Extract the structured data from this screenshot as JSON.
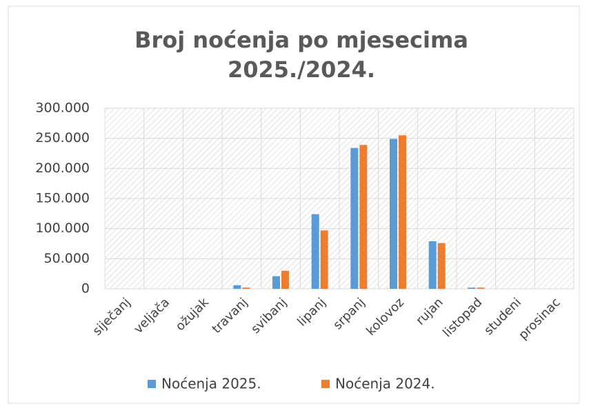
{
  "chart_data": {
    "type": "bar",
    "title": [
      "Broj noćenja po mjesecima",
      "2025./2024."
    ],
    "categories": [
      "siječanj",
      "veljača",
      "ožujak",
      "travanj",
      "svibanj",
      "lipanj",
      "srpanj",
      "kolovoz",
      "rujan",
      "listopad",
      "studeni",
      "prosinac"
    ],
    "series": [
      {
        "name": "Noćenja 2025.",
        "color": "#5b9bd5",
        "values": [
          0,
          0,
          0,
          6000,
          21000,
          124000,
          234000,
          249000,
          79000,
          2000,
          0,
          0
        ]
      },
      {
        "name": "Noćenja 2024.",
        "color": "#ed7d31",
        "values": [
          0,
          0,
          0,
          2000,
          30000,
          97000,
          239000,
          255000,
          76000,
          2000,
          0,
          0
        ]
      }
    ],
    "ylim": [
      0,
      300000
    ],
    "yticks": [
      0,
      {
        "value": 50000,
        "label": "50.000"
      },
      {
        "value": 100000,
        "label": "100.000"
      },
      {
        "value": 150000,
        "label": "150.000"
      },
      {
        "value": 200000,
        "label": "200.000"
      },
      {
        "value": 250000,
        "label": "250.000"
      },
      {
        "value": 300000,
        "label": "300.000"
      }
    ],
    "grid": true,
    "legend": "bottom"
  }
}
